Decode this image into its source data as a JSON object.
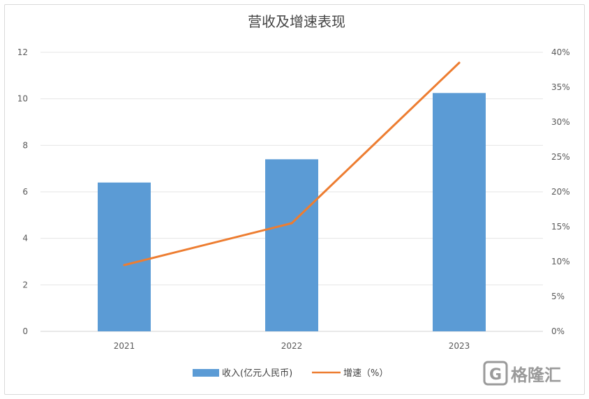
{
  "chart_data": {
    "type": "bar",
    "title": "营收及增速表现",
    "categories": [
      "2021",
      "2022",
      "2023"
    ],
    "series": [
      {
        "name": "收入(亿元人民币)",
        "type": "bar",
        "axis": "left",
        "values": [
          6.4,
          7.4,
          10.25
        ],
        "color": "#5b9bd5"
      },
      {
        "name": "增速（%）",
        "type": "line",
        "axis": "right",
        "values": [
          9.5,
          15.5,
          38.5
        ],
        "color": "#ed7d31"
      }
    ],
    "y_left": {
      "ylim": [
        0,
        12
      ],
      "ticks": [
        "0",
        "2",
        "4",
        "6",
        "8",
        "10",
        "12"
      ]
    },
    "y_right": {
      "ylim": [
        0,
        40
      ],
      "ticks": [
        "0%",
        "5%",
        "10%",
        "15%",
        "20%",
        "25%",
        "30%",
        "35%",
        "40%"
      ]
    },
    "grid": true,
    "legend": "bottom"
  },
  "watermark": {
    "text": "格隆汇",
    "logo_letter": "G"
  }
}
